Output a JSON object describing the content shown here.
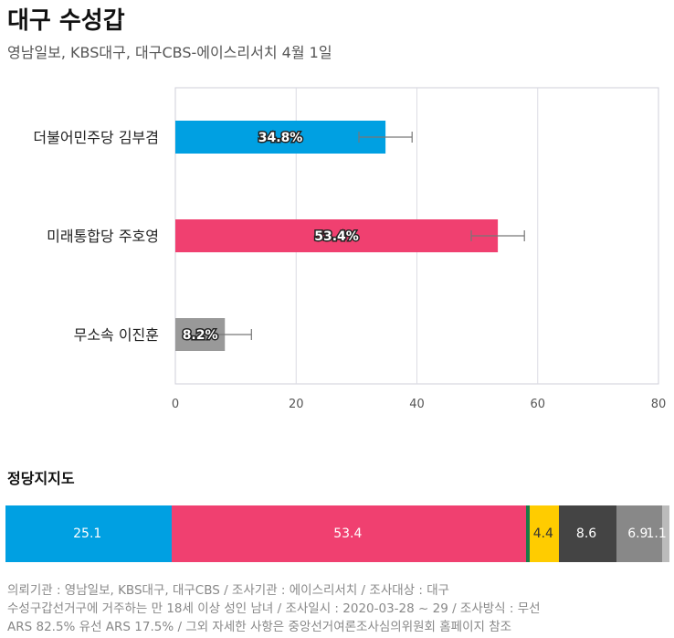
{
  "header": {
    "title": "대구 수성갑",
    "subtitle": "영남일보, KBS대구, 대구CBS-에이스리서치 4월 1일"
  },
  "chart_data": [
    {
      "type": "bar",
      "orientation": "horizontal",
      "categories": [
        "더불어민주당 김부겸",
        "미래통합당 주호영",
        "무소속 이진훈"
      ],
      "values": [
        34.8,
        53.4,
        8.2
      ],
      "value_labels": [
        "34.8%",
        "53.4%",
        "8.2%"
      ],
      "error_bars": [
        [
          30.4,
          39.2
        ],
        [
          49.0,
          57.8
        ],
        [
          3.8,
          12.6
        ]
      ],
      "colors": [
        "#00a0e2",
        "#f04070",
        "#999999"
      ],
      "xlim": [
        0,
        80
      ],
      "xticks": [
        0,
        20,
        40,
        60,
        80
      ],
      "grid": true
    },
    {
      "type": "bar",
      "orientation": "stacked-horizontal",
      "title": "정당지지도",
      "segments": [
        {
          "value": 25.1,
          "label": "25.1",
          "color": "#00a0e2"
        },
        {
          "value": 53.4,
          "label": "53.4",
          "color": "#f04070"
        },
        {
          "value": 0.6,
          "label": "",
          "color": "#1a7a4a"
        },
        {
          "value": 4.4,
          "label": "4.4",
          "color": "#ffcc00"
        },
        {
          "value": 8.6,
          "label": "8.6",
          "color": "#444444"
        },
        {
          "value": 6.9,
          "label": "6.9",
          "color": "#888888"
        },
        {
          "value": 1.1,
          "label": "1.1",
          "color": "#bbbbbb"
        }
      ]
    }
  ],
  "footer": {
    "line1": "의뢰기관 : 영남일보, KBS대구, 대구CBS / 조사기관 : 에이스리서치 / 조사대상 : 대구",
    "line2": "수성구갑선거구에 거주하는 만 18세 이상 성인 남녀 / 조사일시 : 2020-03-28 ~ 29 / 조사방식 : 무선",
    "line3": "ARS 82.5% 유선 ARS 17.5% / 그외 자세한 사항은 중앙선거여론조사심의위원회 홈페이지 참조"
  }
}
